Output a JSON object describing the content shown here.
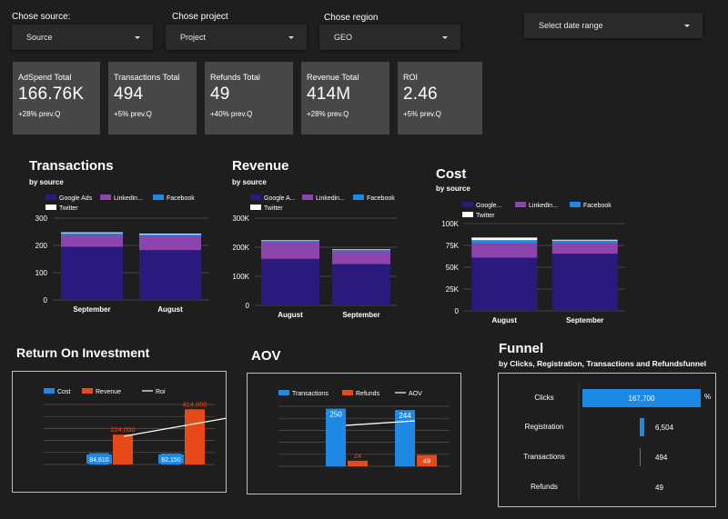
{
  "filters": [
    {
      "label": "Chose source:",
      "value": "Source"
    },
    {
      "label": "Chose project",
      "value": "Project"
    },
    {
      "label": "Chose region",
      "value": "GEO"
    }
  ],
  "date_range": {
    "value": "Select date range"
  },
  "kpis": [
    {
      "title": "AdSpend Total",
      "value": "166.76K",
      "change": "+28% prev.Q"
    },
    {
      "title": "Transactions Total",
      "value": "494",
      "change": "+5% prev.Q"
    },
    {
      "title": "Refunds Total",
      "value": "49",
      "change": "+40% prev.Q"
    },
    {
      "title": "Revenue Total",
      "value": "414M",
      "change": "+28% prev.Q"
    },
    {
      "title": "ROI",
      "value": "2.46",
      "change": "+5% prev.Q"
    }
  ],
  "colors": {
    "google_ads": "#2b1a7e",
    "linkedin": "#8e44ad",
    "facebook": "#1e88e5",
    "twitter": "#ffffff",
    "cost": "#1e88e5",
    "revenue": "#e64a19",
    "roi": "#ffffff",
    "funnel": "#1e88e5"
  },
  "chart_data": [
    {
      "type": "bar",
      "stacked": true,
      "title": "Transactions",
      "subtitle": "by source",
      "categories": [
        "September",
        "August"
      ],
      "series": [
        {
          "name": "Google Ads",
          "values": [
            195,
            183
          ]
        },
        {
          "name": "Linkedin...",
          "values": [
            43,
            50
          ]
        },
        {
          "name": "Facebook",
          "values": [
            7,
            7
          ]
        },
        {
          "name": "Twitter",
          "values": [
            3,
            3
          ]
        }
      ],
      "ylim": [
        0,
        300
      ],
      "yticks": [
        "0",
        "100",
        "200",
        "300"
      ],
      "legend": "top"
    },
    {
      "type": "bar",
      "stacked": true,
      "title": "Revenue",
      "subtitle": "by source",
      "categories": [
        "August",
        "September"
      ],
      "series": [
        {
          "name": "Google A...",
          "values": [
            160000,
            142000
          ]
        },
        {
          "name": "Linkedin...",
          "values": [
            57000,
            44000
          ]
        },
        {
          "name": "Facebook",
          "values": [
            5000,
            5000
          ]
        },
        {
          "name": "Twitter",
          "values": [
            2000,
            2000
          ]
        }
      ],
      "ylim": [
        0,
        300000
      ],
      "yticks": [
        "0",
        "100K",
        "200K",
        "300K"
      ],
      "legend": "top"
    },
    {
      "type": "bar",
      "stacked": true,
      "title": "Cost",
      "subtitle": "by source",
      "categories": [
        "August",
        "September"
      ],
      "series": [
        {
          "name": "Google...",
          "values": [
            61000,
            65500
          ]
        },
        {
          "name": "Linkedin...",
          "values": [
            16000,
            12000
          ]
        },
        {
          "name": "Facebook",
          "values": [
            4000,
            3000
          ]
        },
        {
          "name": "Twitter",
          "values": [
            3000,
            1000
          ]
        }
      ],
      "ylim": [
        0,
        100000
      ],
      "yticks": [
        "0",
        "25K",
        "50K",
        "75K",
        "100K"
      ],
      "legend": "top"
    },
    {
      "type": "bar+line",
      "title": "Return On Investment",
      "series": [
        {
          "name": "Cost",
          "values": [
            84610,
            82150
          ],
          "labels": [
            "84,610",
            "82,150"
          ]
        },
        {
          "name": "Revenue",
          "values": [
            224000,
            414000
          ],
          "labels": [
            "224,000",
            "414,000"
          ]
        },
        {
          "name": "Roi",
          "values": [
            2.65,
            5.04
          ]
        }
      ],
      "ylim": [
        0,
        450000
      ]
    },
    {
      "type": "bar+line",
      "title": "AOV",
      "series": [
        {
          "name": "Transactions",
          "values": [
            250,
            244
          ],
          "labels": [
            "250",
            "244"
          ]
        },
        {
          "name": "Refunds",
          "values": [
            24,
            49
          ],
          "labels": [
            "24",
            "49"
          ]
        },
        {
          "name": "AOV",
          "values": [
            0.9,
            1.0
          ]
        }
      ],
      "ylim": [
        0,
        260
      ]
    },
    {
      "type": "bar",
      "orientation": "horizontal",
      "title": "Funnel",
      "subtitle": "by Clicks, Registration, Transactions and Refundsfunnel",
      "categories": [
        "Clicks",
        "Registration",
        "Transactions",
        "Refunds"
      ],
      "values": [
        167700,
        6504,
        494,
        49
      ],
      "labels": [
        "167,700",
        "6,504",
        "494",
        "49"
      ],
      "unit_header": "%"
    }
  ]
}
